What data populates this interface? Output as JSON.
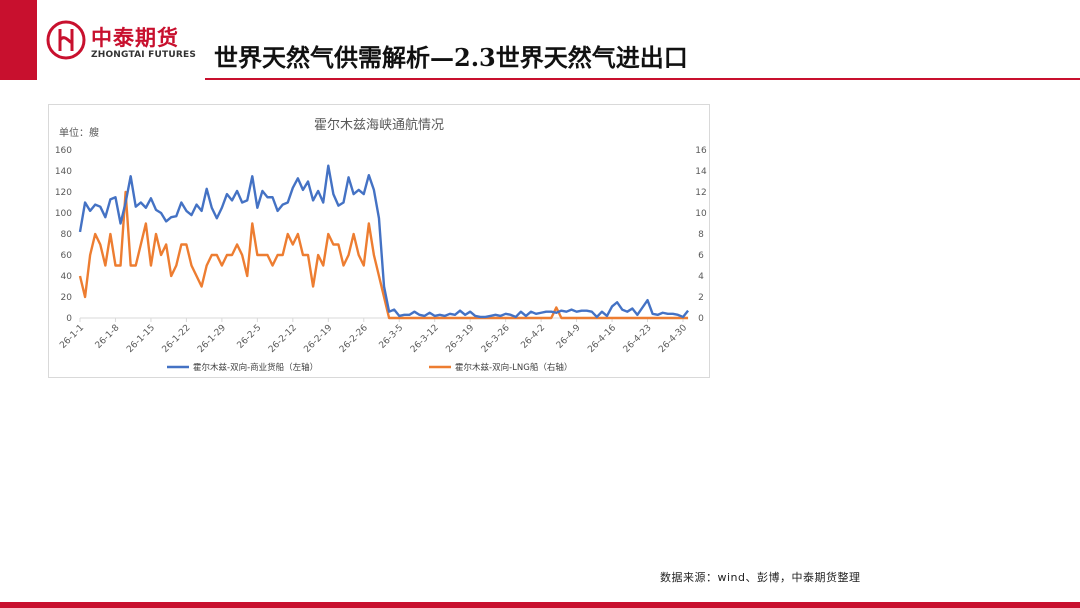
{
  "header": {
    "logo_cn": "中泰期货",
    "logo_en": "ZHONGTAI FUTURES",
    "title": "世界天然气供需解析—2.3世界天然气进出口"
  },
  "colors": {
    "brand": "#c8102e",
    "series_blue": "#4472c4",
    "series_orange": "#ed7d31"
  },
  "chart_data": {
    "type": "line",
    "title": "霍尔木兹海峡通航情况",
    "unit_label": "单位：艘",
    "x_labels": [
      "26-1-1",
      "26-1-8",
      "26-1-15",
      "26-1-22",
      "26-1-29",
      "26-2-5",
      "26-2-12",
      "26-2-19",
      "26-2-26",
      "26-3-5",
      "26-3-12",
      "26-3-19",
      "26-3-26",
      "26-4-2",
      "26-4-9",
      "26-4-16",
      "26-4-23",
      "26-4-30"
    ],
    "x_start": "2026-01-01",
    "y_left_range": [
      0,
      160
    ],
    "y_left_ticks": [
      0,
      20,
      40,
      60,
      80,
      100,
      120,
      140,
      160
    ],
    "y_right_range": [
      0,
      16
    ],
    "y_right_ticks": [
      0,
      2,
      4,
      6,
      8,
      10,
      12,
      14,
      16
    ],
    "grid": false,
    "legend_position": "bottom",
    "series": [
      {
        "name": "霍尔木兹-双向-商业货船（左轴）",
        "axis": "left",
        "color": "#4472c4",
        "values": [
          82,
          110,
          102,
          108,
          106,
          96,
          113,
          115,
          90,
          110,
          135,
          106,
          110,
          105,
          114,
          103,
          100,
          92,
          96,
          97,
          110,
          102,
          98,
          108,
          102,
          123,
          105,
          95,
          105,
          118,
          112,
          121,
          110,
          112,
          135,
          105,
          121,
          115,
          115,
          102,
          108,
          110,
          124,
          133,
          122,
          130,
          112,
          121,
          110,
          145,
          118,
          107,
          110,
          134,
          118,
          122,
          118,
          136,
          122,
          95,
          30,
          6,
          8,
          2,
          3,
          3,
          6,
          3,
          2,
          5,
          2,
          3,
          2,
          4,
          3,
          7,
          3,
          6,
          2,
          1,
          1,
          2,
          3,
          2,
          4,
          3,
          1,
          6,
          2,
          6,
          4,
          5,
          6,
          6,
          5,
          7,
          6,
          8,
          6,
          7,
          7,
          6,
          1,
          6,
          2,
          11,
          15,
          8,
          6,
          9,
          3,
          10,
          17,
          4,
          3,
          5,
          4,
          4,
          3,
          1,
          7
        ],
        "labels_cover_to": "2026-04-30"
      },
      {
        "name": "霍尔木兹-双向-LNG船（右轴）",
        "axis": "right",
        "color": "#ed7d31",
        "values": [
          4,
          2,
          6,
          8,
          7,
          5,
          8,
          5,
          5,
          12,
          5,
          5,
          7,
          9,
          5,
          8,
          6,
          7,
          4,
          5,
          7,
          7,
          5,
          4,
          3,
          5,
          6,
          6,
          5,
          6,
          6,
          7,
          6,
          4,
          9,
          6,
          6,
          6,
          5,
          6,
          6,
          8,
          7,
          8,
          6,
          6,
          3,
          6,
          5,
          8,
          7,
          7,
          5,
          6,
          8,
          6,
          5,
          9,
          6,
          4,
          2,
          0,
          0,
          0,
          0,
          0,
          0,
          0,
          0,
          0,
          0,
          0,
          0,
          0,
          0,
          0,
          0,
          0,
          0,
          0,
          0,
          0,
          0,
          0,
          0,
          0,
          0,
          0,
          0,
          0,
          0,
          0,
          0,
          0,
          1,
          0,
          0,
          0,
          0,
          0,
          0,
          0,
          0,
          0,
          0,
          0,
          0,
          0,
          0,
          0,
          0,
          0,
          0,
          0,
          0,
          0,
          0,
          0,
          0,
          0,
          0
        ]
      }
    ]
  },
  "footer": {
    "source": "数据来源：wind、彭博，中泰期货整理"
  }
}
